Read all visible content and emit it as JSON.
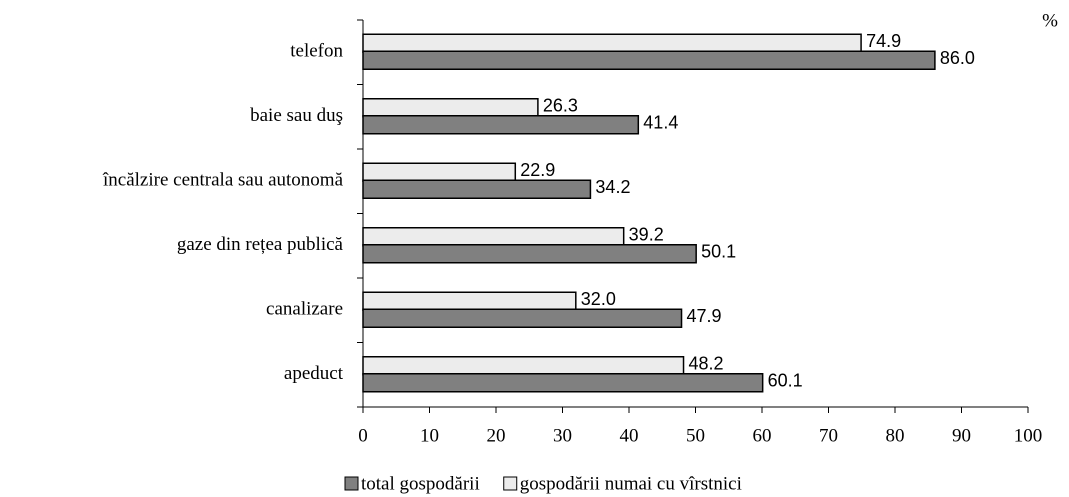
{
  "chart_data": {
    "type": "bar",
    "orientation": "horizontal",
    "unit": "%",
    "categories": [
      "telefon",
      "baie sau duş",
      "încălzire centrala sau autonomă",
      "gaze din rețea publică",
      "canalizare",
      "apeduct"
    ],
    "series": [
      {
        "name": "total gospodării",
        "color": "#808080",
        "values": [
          86.0,
          41.4,
          34.2,
          50.1,
          47.9,
          60.1
        ],
        "value_labels": [
          "86.0",
          "41.4",
          "34.2",
          "50.1",
          "47.9",
          "60.1"
        ]
      },
      {
        "name": "gospodării numai cu vîrstnici",
        "color": "#ececec",
        "values": [
          74.9,
          26.3,
          22.9,
          39.2,
          32.0,
          48.2
        ],
        "value_labels": [
          "74.9",
          "26.3",
          "22.9",
          "39.2",
          "32.0",
          "48.2"
        ]
      }
    ],
    "xlim": [
      0,
      100
    ],
    "xticks": [
      0,
      10,
      20,
      30,
      40,
      50,
      60,
      70,
      80,
      90,
      100
    ],
    "legend": "bottom"
  }
}
